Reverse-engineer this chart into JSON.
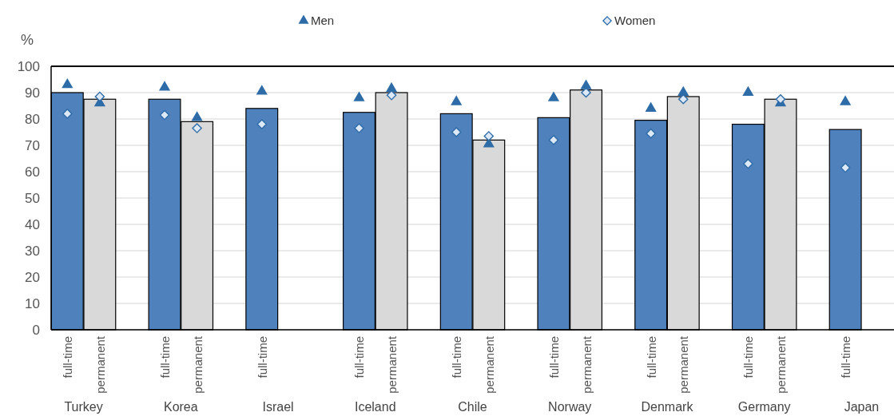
{
  "chart_data": {
    "type": "bar",
    "ylabel": "%",
    "categories": [
      "full-time",
      "permanent",
      null,
      "full-time",
      "permanent",
      null,
      "full-time",
      null,
      null,
      "full-time",
      "permanent",
      null,
      "full-time",
      "permanent",
      null,
      "full-time",
      "permanent",
      null,
      "full-time",
      "permanent",
      null,
      "full-time",
      "permanent",
      null,
      "full-time",
      null
    ],
    "annotations": [
      "Turkey",
      "Korea",
      "Israel",
      "Iceland",
      "Chile",
      "Norway",
      "Denmark",
      "Germany",
      "Japan"
    ],
    "series": [
      {
        "values": [
          90,
          87.5,
          null,
          87.5,
          79,
          null,
          84,
          null,
          null,
          82.5,
          90,
          null,
          82,
          72,
          null,
          80.5,
          91,
          null,
          79.5,
          88.5,
          null,
          78,
          87.5,
          null,
          76,
          null
        ],
        "colors": [
          "#4f81bd",
          "#d9d9d9",
          null,
          "#4f81bd",
          "#d9d9d9",
          null,
          "#4f81bd",
          null,
          null,
          "#4f81bd",
          "#d9d9d9",
          null,
          "#4f81bd",
          "#d9d9d9",
          null,
          "#4f81bd",
          "#d9d9d9",
          null,
          "#4f81bd",
          "#d9d9d9",
          null,
          "#4f81bd",
          "#d9d9d9",
          null,
          "#4f81bd",
          null
        ]
      },
      {
        "type": "scatter",
        "name": "Men",
        "color": "#2e6ca8",
        "marker": "triangle",
        "values": [
          93,
          86,
          null,
          92,
          80.5,
          null,
          90.5,
          null,
          null,
          88,
          91.5,
          null,
          86.5,
          70.5,
          null,
          88,
          92.5,
          null,
          84,
          90,
          null,
          90,
          86,
          null,
          86.5,
          null
        ]
      },
      {
        "type": "scatter",
        "name": "Women",
        "color": "#dde9f6",
        "marker": "diamond",
        "values": [
          82,
          88.5,
          null,
          81.5,
          76.5,
          null,
          78,
          null,
          null,
          76.5,
          89,
          null,
          75,
          73.5,
          null,
          72,
          90,
          null,
          74.5,
          87.5,
          null,
          63,
          87.5,
          null,
          61.5,
          null
        ]
      }
    ],
    "ylim": [
      0,
      100
    ],
    "yticks": [
      0,
      10,
      20,
      30,
      40,
      50,
      60,
      70,
      80,
      90,
      100
    ],
    "grid": "y",
    "legend": "top"
  }
}
